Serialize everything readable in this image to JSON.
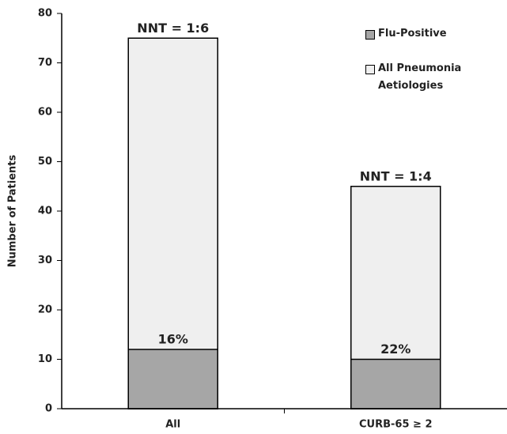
{
  "chart_data": {
    "type": "bar",
    "y_label": "Number of Patients",
    "categories": [
      "All",
      "CURB-65 ≥ 2"
    ],
    "series": [
      {
        "name": "Flu-Positive",
        "color": "#a6a6a6",
        "values": [
          12,
          10
        ],
        "labels": [
          "16%",
          "22%"
        ]
      },
      {
        "name": "All Pneumonia Aetiologies",
        "color": "#efefef",
        "values": [
          75,
          45
        ],
        "labels": [
          "NNT = 1:6",
          "NNT = 1:4"
        ]
      }
    ],
    "ylim": [
      0,
      80
    ],
    "yticks": [
      0,
      10,
      20,
      30,
      40,
      50,
      60,
      70,
      80
    ],
    "grid": false
  }
}
